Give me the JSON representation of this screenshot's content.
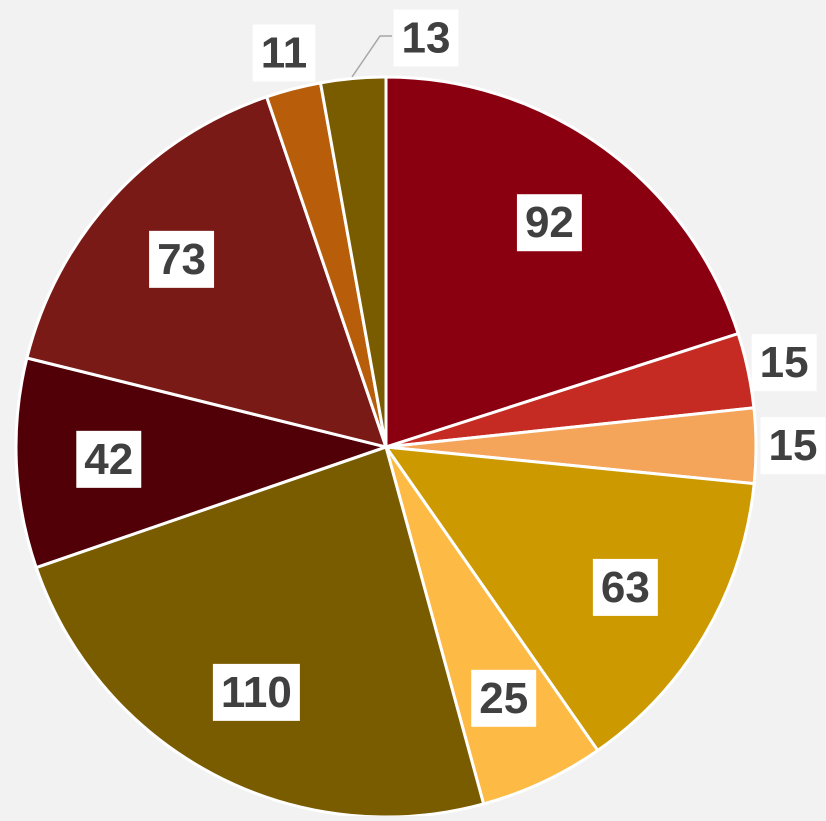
{
  "chart_data": {
    "type": "pie",
    "values": [
      92,
      15,
      15,
      63,
      25,
      110,
      42,
      73,
      11,
      13
    ],
    "colors": [
      "#8B0010",
      "#C52B22",
      "#F4A55A",
      "#CC9A00",
      "#FDBA45",
      "#7A5C00",
      "#520008",
      "#7A1A17",
      "#B85E0A",
      "#7A5C00"
    ]
  }
}
